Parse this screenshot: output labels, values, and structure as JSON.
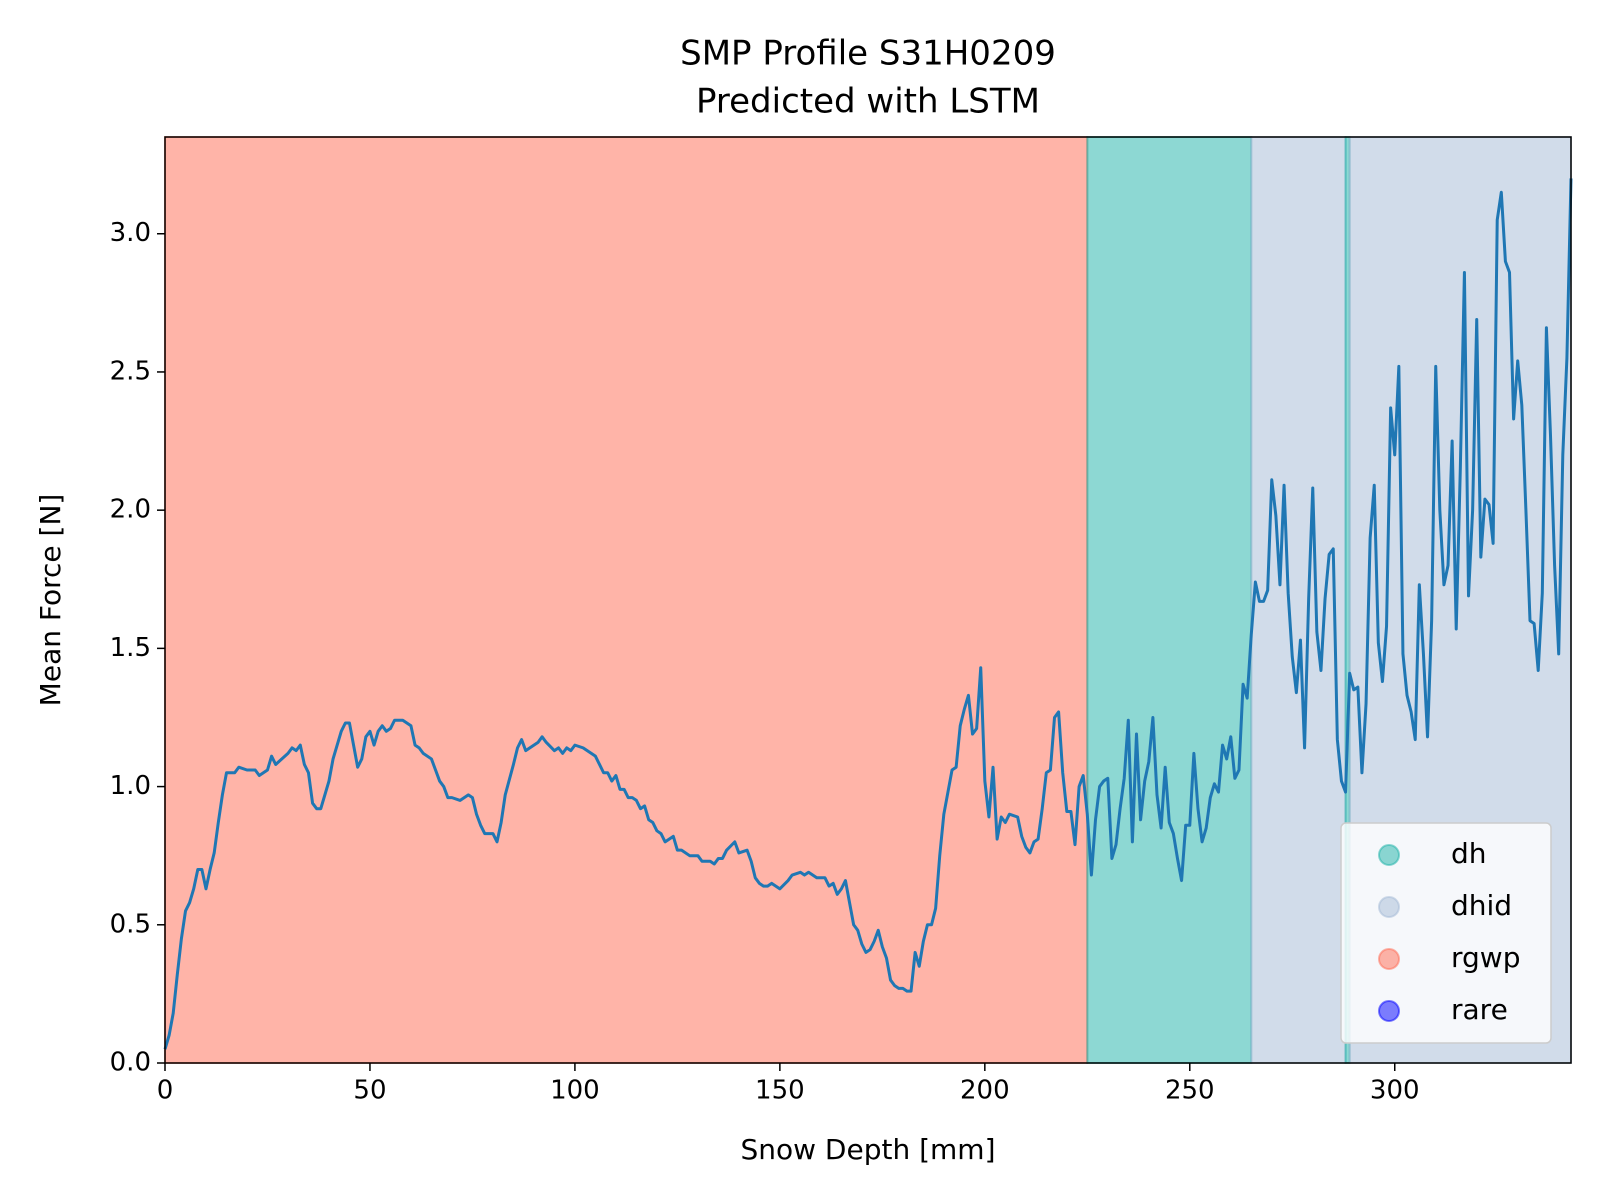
{
  "chart_data": {
    "type": "line",
    "title": [
      "SMP Profile S31H0209",
      "Predicted with LSTM"
    ],
    "xlabel": "Snow Depth [mm]",
    "ylabel": "Mean Force [N]",
    "xlim": [
      0,
      343
    ],
    "ylim": [
      0,
      3.35
    ],
    "xticks": [
      0,
      50,
      100,
      150,
      200,
      250,
      300
    ],
    "yticks": [
      {
        "value": 0,
        "label": "0.0"
      },
      0.5,
      {
        "value": 1,
        "label": "1.0"
      },
      1.5,
      {
        "value": 2,
        "label": "2.0"
      },
      2.5,
      {
        "value": 3,
        "label": "3.0"
      }
    ],
    "line_color": "#1f77b4",
    "legend_position": "lower right",
    "legend": [
      {
        "name": "dh",
        "color": "#1cb1a7"
      },
      {
        "name": "dhid",
        "color": "#a3b9d6"
      },
      {
        "name": "rgwp",
        "color": "#ff6a52"
      },
      {
        "name": "rare",
        "color": "#0000ff"
      }
    ],
    "bands": [
      {
        "label": "rgwp",
        "start": 0,
        "end": 225
      },
      {
        "label": "dh",
        "start": 225,
        "end": 265
      },
      {
        "label": "dhid",
        "start": 265,
        "end": 288
      },
      {
        "label": "dh",
        "start": 288,
        "end": 289
      },
      {
        "label": "dhid",
        "start": 289,
        "end": 343
      }
    ],
    "x": [
      0,
      1,
      2,
      3,
      4,
      5,
      6,
      7,
      8,
      9,
      10,
      11,
      12,
      13,
      14,
      15,
      16,
      17,
      18,
      20,
      22,
      23,
      25,
      26,
      27,
      30,
      31,
      32,
      33,
      34,
      35,
      36,
      37,
      38,
      40,
      41,
      43,
      44,
      45,
      46,
      47,
      48,
      49,
      50,
      51,
      52,
      53,
      54,
      55,
      56,
      57,
      58,
      60,
      61,
      62,
      63,
      65,
      66,
      67,
      68,
      69,
      70,
      72,
      74,
      75,
      76,
      77,
      78,
      80,
      81,
      82,
      83,
      85,
      86,
      87,
      88,
      90,
      91,
      92,
      93,
      95,
      96,
      97,
      98,
      99,
      100,
      102,
      103,
      105,
      106,
      107,
      108,
      109,
      110,
      111,
      112,
      113,
      114,
      115,
      116,
      117,
      118,
      119,
      120,
      121,
      122,
      123,
      124,
      125,
      126,
      128,
      130,
      131,
      133,
      134,
      135,
      136,
      137,
      139,
      140,
      142,
      143,
      144,
      145,
      146,
      147,
      148,
      150,
      152,
      153,
      155,
      156,
      157,
      159,
      161,
      162,
      163,
      164,
      165,
      166,
      167,
      168,
      169,
      170,
      171,
      172,
      173,
      174,
      175,
      176,
      177,
      178,
      179,
      180,
      181,
      182,
      183,
      184,
      185,
      186,
      187,
      188,
      189,
      190,
      191,
      192,
      193,
      194,
      195,
      196,
      197,
      198,
      199,
      200,
      201,
      202,
      203,
      204,
      205,
      206,
      208,
      209,
      210,
      211,
      212,
      213,
      214,
      215,
      216,
      217,
      218,
      219,
      220,
      221,
      222,
      223,
      224,
      225,
      226,
      227,
      228,
      229,
      230,
      231,
      232,
      233,
      234,
      235,
      236,
      237,
      238,
      239,
      240,
      241,
      242,
      243,
      244,
      245,
      246,
      247,
      248,
      249,
      250,
      251,
      252,
      253,
      254,
      255,
      256,
      257,
      258,
      259,
      260,
      261,
      262,
      263,
      264,
      265,
      266,
      267,
      268,
      269,
      270,
      271,
      272,
      273,
      274,
      275,
      276,
      277,
      278,
      279,
      280,
      281,
      282,
      283,
      284,
      285,
      286,
      287,
      288,
      289,
      290,
      291,
      292,
      293,
      294,
      295,
      296,
      297,
      298,
      299,
      300,
      301,
      302,
      303,
      304,
      305,
      306,
      307,
      308,
      309,
      310,
      311,
      312,
      313,
      314,
      315,
      316,
      317,
      318,
      319,
      320,
      321,
      322,
      323,
      324,
      325,
      326,
      327,
      328,
      329,
      330,
      331,
      332,
      333,
      334,
      335,
      336,
      337,
      338,
      339,
      340,
      341,
      342,
      343
    ],
    "values": [
      0.05,
      0.1,
      0.18,
      0.32,
      0.45,
      0.55,
      0.58,
      0.63,
      0.7,
      0.7,
      0.63,
      0.7,
      0.76,
      0.87,
      0.97,
      1.05,
      1.05,
      1.05,
      1.07,
      1.06,
      1.06,
      1.04,
      1.06,
      1.11,
      1.08,
      1.12,
      1.14,
      1.13,
      1.15,
      1.08,
      1.05,
      0.94,
      0.92,
      0.92,
      1.02,
      1.1,
      1.2,
      1.23,
      1.23,
      1.15,
      1.07,
      1.1,
      1.18,
      1.2,
      1.15,
      1.2,
      1.22,
      1.2,
      1.21,
      1.24,
      1.24,
      1.24,
      1.22,
      1.15,
      1.14,
      1.12,
      1.1,
      1.06,
      1.02,
      1.0,
      0.96,
      0.96,
      0.95,
      0.97,
      0.96,
      0.9,
      0.86,
      0.83,
      0.83,
      0.8,
      0.87,
      0.97,
      1.08,
      1.14,
      1.17,
      1.13,
      1.15,
      1.16,
      1.18,
      1.16,
      1.13,
      1.14,
      1.12,
      1.14,
      1.13,
      1.15,
      1.14,
      1.13,
      1.11,
      1.08,
      1.05,
      1.05,
      1.02,
      1.04,
      0.99,
      0.99,
      0.96,
      0.96,
      0.95,
      0.92,
      0.93,
      0.88,
      0.87,
      0.84,
      0.83,
      0.8,
      0.81,
      0.82,
      0.77,
      0.77,
      0.75,
      0.75,
      0.73,
      0.73,
      0.72,
      0.74,
      0.74,
      0.77,
      0.8,
      0.76,
      0.77,
      0.73,
      0.67,
      0.65,
      0.64,
      0.64,
      0.65,
      0.63,
      0.66,
      0.68,
      0.69,
      0.68,
      0.69,
      0.67,
      0.67,
      0.64,
      0.65,
      0.61,
      0.63,
      0.66,
      0.58,
      0.5,
      0.48,
      0.43,
      0.4,
      0.41,
      0.44,
      0.48,
      0.42,
      0.38,
      0.3,
      0.28,
      0.27,
      0.27,
      0.26,
      0.26,
      0.4,
      0.35,
      0.44,
      0.5,
      0.5,
      0.56,
      0.75,
      0.9,
      0.98,
      1.06,
      1.07,
      1.22,
      1.28,
      1.33,
      1.19,
      1.21,
      1.43,
      1.02,
      0.89,
      1.07,
      0.81,
      0.89,
      0.87,
      0.9,
      0.89,
      0.82,
      0.78,
      0.76,
      0.8,
      0.81,
      0.92,
      1.05,
      1.06,
      1.25,
      1.27,
      1.05,
      0.91,
      0.91,
      0.79,
      1.0,
      1.04,
      0.9,
      0.68,
      0.88,
      1.0,
      1.02,
      1.03,
      0.74,
      0.79,
      0.92,
      1.03,
      1.24,
      0.8,
      1.19,
      0.88,
      1.02,
      1.09,
      1.25,
      0.97,
      0.85,
      1.07,
      0.87,
      0.83,
      0.74,
      0.66,
      0.86,
      0.86,
      1.12,
      0.92,
      0.8,
      0.85,
      0.96,
      1.01,
      0.98,
      1.15,
      1.1,
      1.18,
      1.03,
      1.06,
      1.37,
      1.32,
      1.55,
      1.74,
      1.67,
      1.67,
      1.71,
      2.11,
      1.98,
      1.73,
      2.09,
      1.7,
      1.47,
      1.34,
      1.53,
      1.14,
      1.68,
      2.08,
      1.56,
      1.42,
      1.68,
      1.84,
      1.86,
      1.17,
      1.02,
      0.98,
      1.41,
      1.35,
      1.36,
      1.05,
      1.3,
      1.9,
      2.09,
      1.52,
      1.38,
      1.58,
      2.37,
      2.2,
      2.52,
      1.48,
      1.33,
      1.27,
      1.17,
      1.73,
      1.48,
      1.18,
      1.6,
      2.52,
      2.0,
      1.73,
      1.8,
      2.25,
      1.57,
      2.15,
      2.86,
      1.69,
      2.0,
      2.69,
      1.83,
      2.04,
      2.02,
      1.88,
      3.05,
      3.15,
      2.9,
      2.86,
      2.33,
      2.54,
      2.38,
      2.0,
      1.6,
      1.59,
      1.42,
      1.7,
      2.66,
      2.27,
      1.8,
      1.48,
      2.2,
      2.55,
      3.2
    ]
  }
}
